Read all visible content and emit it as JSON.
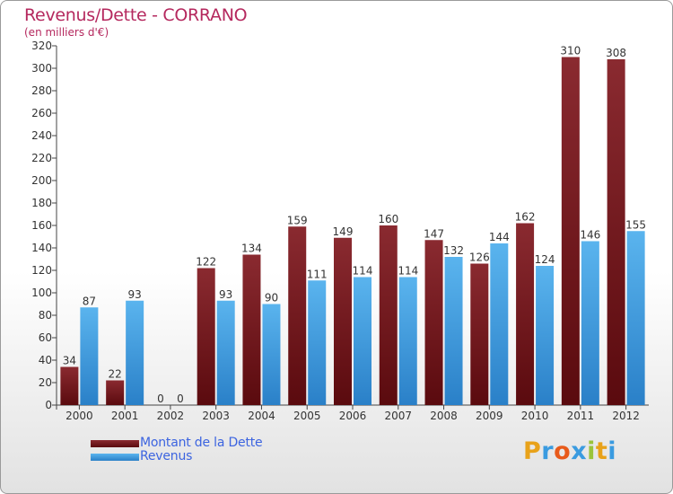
{
  "chart_data": {
    "type": "bar",
    "title": "Revenus/Dette - CORRANO",
    "subtitle": "(en milliers d'€)",
    "categories": [
      "2000",
      "2001",
      "2002",
      "2003",
      "2004",
      "2005",
      "2006",
      "2007",
      "2008",
      "2009",
      "2010",
      "2011",
      "2012"
    ],
    "series": [
      {
        "name": "Montant de la Dette",
        "color": "#7a1a1e",
        "values": [
          34,
          22,
          0,
          122,
          134,
          159,
          149,
          160,
          147,
          126,
          162,
          310,
          308
        ]
      },
      {
        "name": "Revenus",
        "color": "#3f9be0",
        "values": [
          87,
          93,
          0,
          93,
          90,
          111,
          114,
          114,
          132,
          144,
          124,
          146,
          155
        ]
      }
    ],
    "ylim": [
      0,
      320
    ],
    "yticks": [
      0,
      20,
      40,
      60,
      80,
      100,
      120,
      140,
      160,
      180,
      200,
      220,
      240,
      260,
      280,
      300,
      320
    ],
    "grid": false,
    "legend_position": "bottom-left",
    "xlabel": "",
    "ylabel": ""
  },
  "branding": {
    "logo_letters": [
      "P",
      "r",
      "o",
      "x",
      "i",
      "t",
      "i"
    ],
    "logo_colors": [
      "#e8a21a",
      "#3a9be0",
      "#e85a1a",
      "#3a9be0",
      "#9ac43a",
      "#e8a21a",
      "#3a9be0"
    ]
  }
}
